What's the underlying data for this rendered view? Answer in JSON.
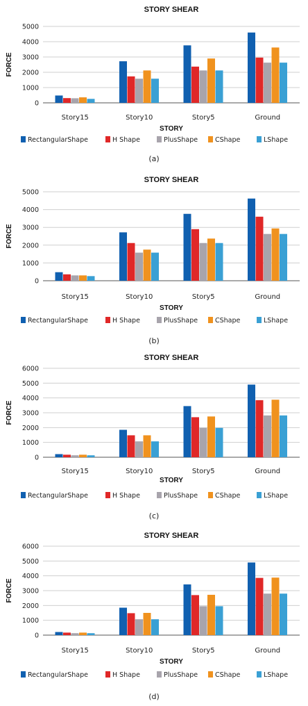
{
  "colors": {
    "Rectangular Shape": "#1060b0",
    "H Shape": "#e02828",
    "Plus Shape": "#a8a4ac",
    "C Shape": "#f0921e",
    "L Shape": "#3aa0d4",
    "grid": "#cfcfcf",
    "axis": "#555555"
  },
  "chart_data": [
    {
      "type": "bar",
      "title": "STORY SHEAR",
      "xlabel": "STORY",
      "ylabel": "FORCE",
      "caption": "(a)",
      "categories": [
        "Story15",
        "Story10",
        "Story5",
        "Ground"
      ],
      "ylim": [
        0,
        5000
      ],
      "yticks": [
        0,
        1000,
        2000,
        3000,
        4000,
        5000
      ],
      "grid": true,
      "legend": "bottom",
      "series": [
        {
          "name": "Rectangular Shape",
          "values": [
            480,
            2720,
            3760,
            4600
          ]
        },
        {
          "name": "H Shape",
          "values": [
            310,
            1730,
            2370,
            2960
          ]
        },
        {
          "name": "Plus Shape",
          "values": [
            300,
            1580,
            2120,
            2630
          ]
        },
        {
          "name": "C Shape",
          "values": [
            360,
            2120,
            2900,
            3620
          ]
        },
        {
          "name": "L Shape",
          "values": [
            260,
            1580,
            2120,
            2630
          ]
        }
      ]
    },
    {
      "type": "bar",
      "title": "STORY SHEAR",
      "xlabel": "STORY",
      "ylabel": "FORCE",
      "caption": "(b)",
      "categories": [
        "Story15",
        "Story10",
        "Story5",
        "Ground"
      ],
      "ylim": [
        0,
        5000
      ],
      "yticks": [
        0,
        1000,
        2000,
        3000,
        4000,
        5000
      ],
      "grid": true,
      "legend": "bottom",
      "series": [
        {
          "name": "Rectangular Shape",
          "values": [
            480,
            2720,
            3760,
            4620
          ]
        },
        {
          "name": "H Shape",
          "values": [
            360,
            2120,
            2900,
            3600
          ]
        },
        {
          "name": "Plus Shape",
          "values": [
            300,
            1580,
            2120,
            2630
          ]
        },
        {
          "name": "C Shape",
          "values": [
            300,
            1750,
            2370,
            2940
          ]
        },
        {
          "name": "L Shape",
          "values": [
            260,
            1580,
            2120,
            2630
          ]
        }
      ]
    },
    {
      "type": "bar",
      "title": "STORY SHEAR",
      "xlabel": "STORY",
      "ylabel": "FORCE",
      "caption": "(c)",
      "categories": [
        "Story15",
        "Story10",
        "Story5",
        "Ground"
      ],
      "ylim": [
        0,
        6000
      ],
      "yticks": [
        0,
        1000,
        2000,
        3000,
        4000,
        5000,
        6000
      ],
      "grid": true,
      "legend": "bottom",
      "series": [
        {
          "name": "Rectangular Shape",
          "values": [
            210,
            1850,
            3450,
            4900
          ]
        },
        {
          "name": "H Shape",
          "values": [
            170,
            1480,
            2700,
            3850
          ]
        },
        {
          "name": "Plus Shape",
          "values": [
            130,
            1070,
            1980,
            2820
          ]
        },
        {
          "name": "C Shape",
          "values": [
            170,
            1480,
            2750,
            3880
          ]
        },
        {
          "name": "L Shape",
          "values": [
            130,
            1070,
            1980,
            2820
          ]
        }
      ]
    },
    {
      "type": "bar",
      "title": "STORY SHEAR",
      "xlabel": "STORY",
      "ylabel": "FORCE",
      "caption": "(d)",
      "categories": [
        "Story15",
        "Story10",
        "Story5",
        "Ground"
      ],
      "ylim": [
        0,
        6000
      ],
      "yticks": [
        0,
        1000,
        2000,
        3000,
        4000,
        5000,
        6000
      ],
      "grid": true,
      "legend": "bottom",
      "series": [
        {
          "name": "Rectangular Shape",
          "values": [
            210,
            1850,
            3420,
            4900
          ]
        },
        {
          "name": "H Shape",
          "values": [
            170,
            1480,
            2700,
            3860
          ]
        },
        {
          "name": "Plus Shape",
          "values": [
            130,
            1070,
            1950,
            2800
          ]
        },
        {
          "name": "C Shape",
          "values": [
            170,
            1500,
            2720,
            3880
          ]
        },
        {
          "name": "L Shape",
          "values": [
            130,
            1070,
            1950,
            2800
          ]
        }
      ]
    }
  ],
  "legend_labels": [
    "RectangularShape",
    "H Shape",
    "PlusShape",
    "CShape",
    "LShape"
  ]
}
